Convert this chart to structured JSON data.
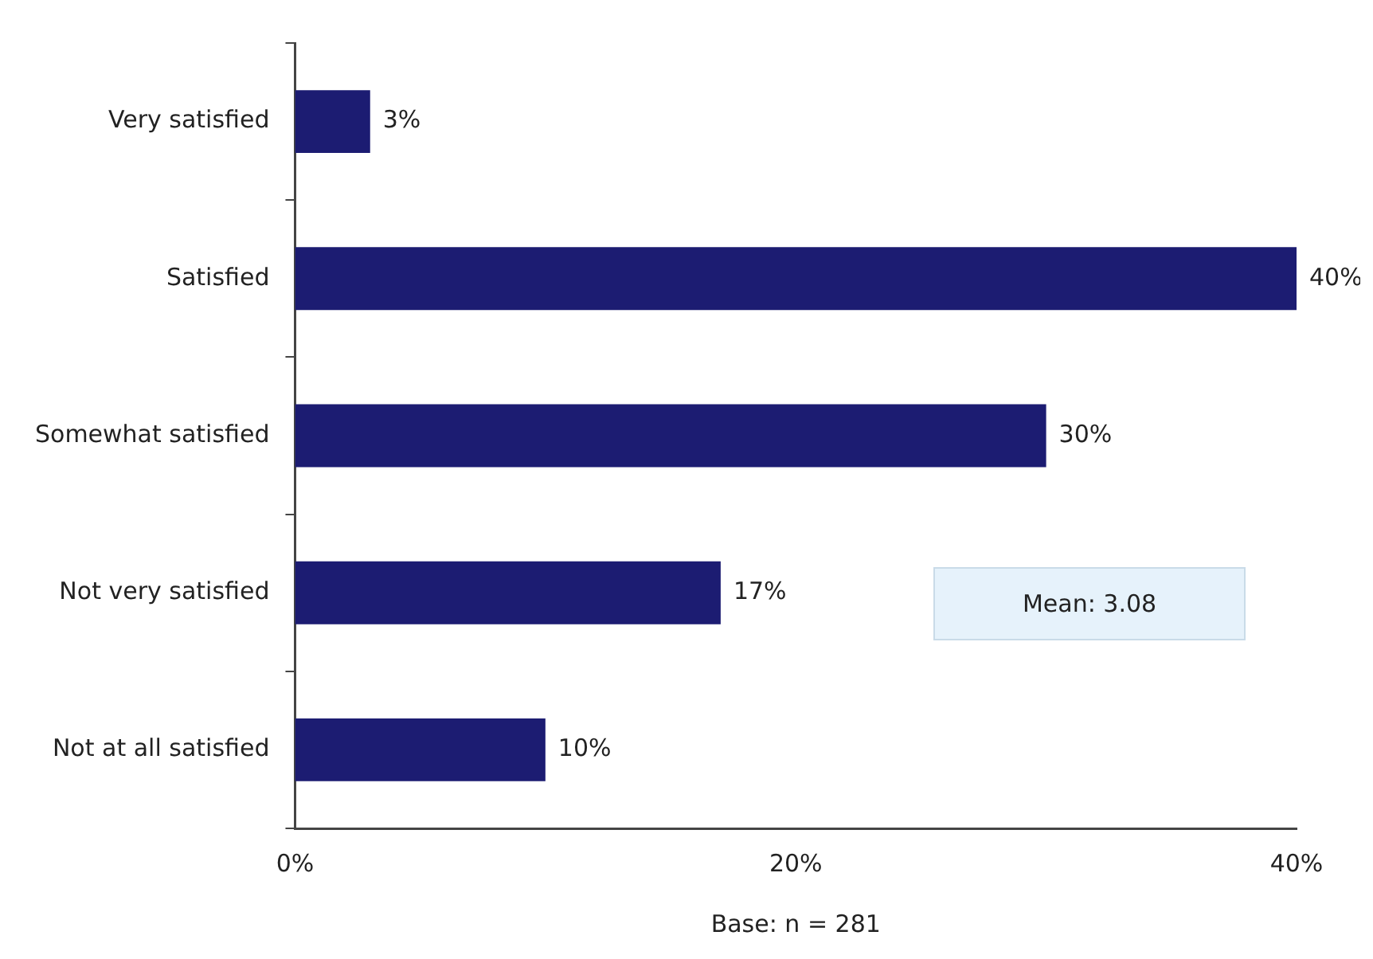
{
  "chart_data": {
    "type": "bar",
    "orientation": "horizontal",
    "categories": [
      "Very satisfied",
      "Satisfied",
      "Somewhat satisfied",
      "Not very satisfied",
      "Not at all satisfied"
    ],
    "values": [
      3,
      40,
      30,
      17,
      10
    ],
    "value_labels": [
      "3%",
      "40%",
      "30%",
      "17%",
      "10%"
    ],
    "color": "#1c1c72",
    "xlim": [
      0,
      40
    ],
    "xticks": [
      {
        "value": 0,
        "label": "0%"
      },
      {
        "value": 20,
        "label": "20%"
      },
      {
        "value": 40,
        "label": "40%"
      }
    ],
    "xlabel": "Base: n = 281",
    "annotations": [
      "Mean: 3.08"
    ],
    "grid": false,
    "legend": false
  }
}
